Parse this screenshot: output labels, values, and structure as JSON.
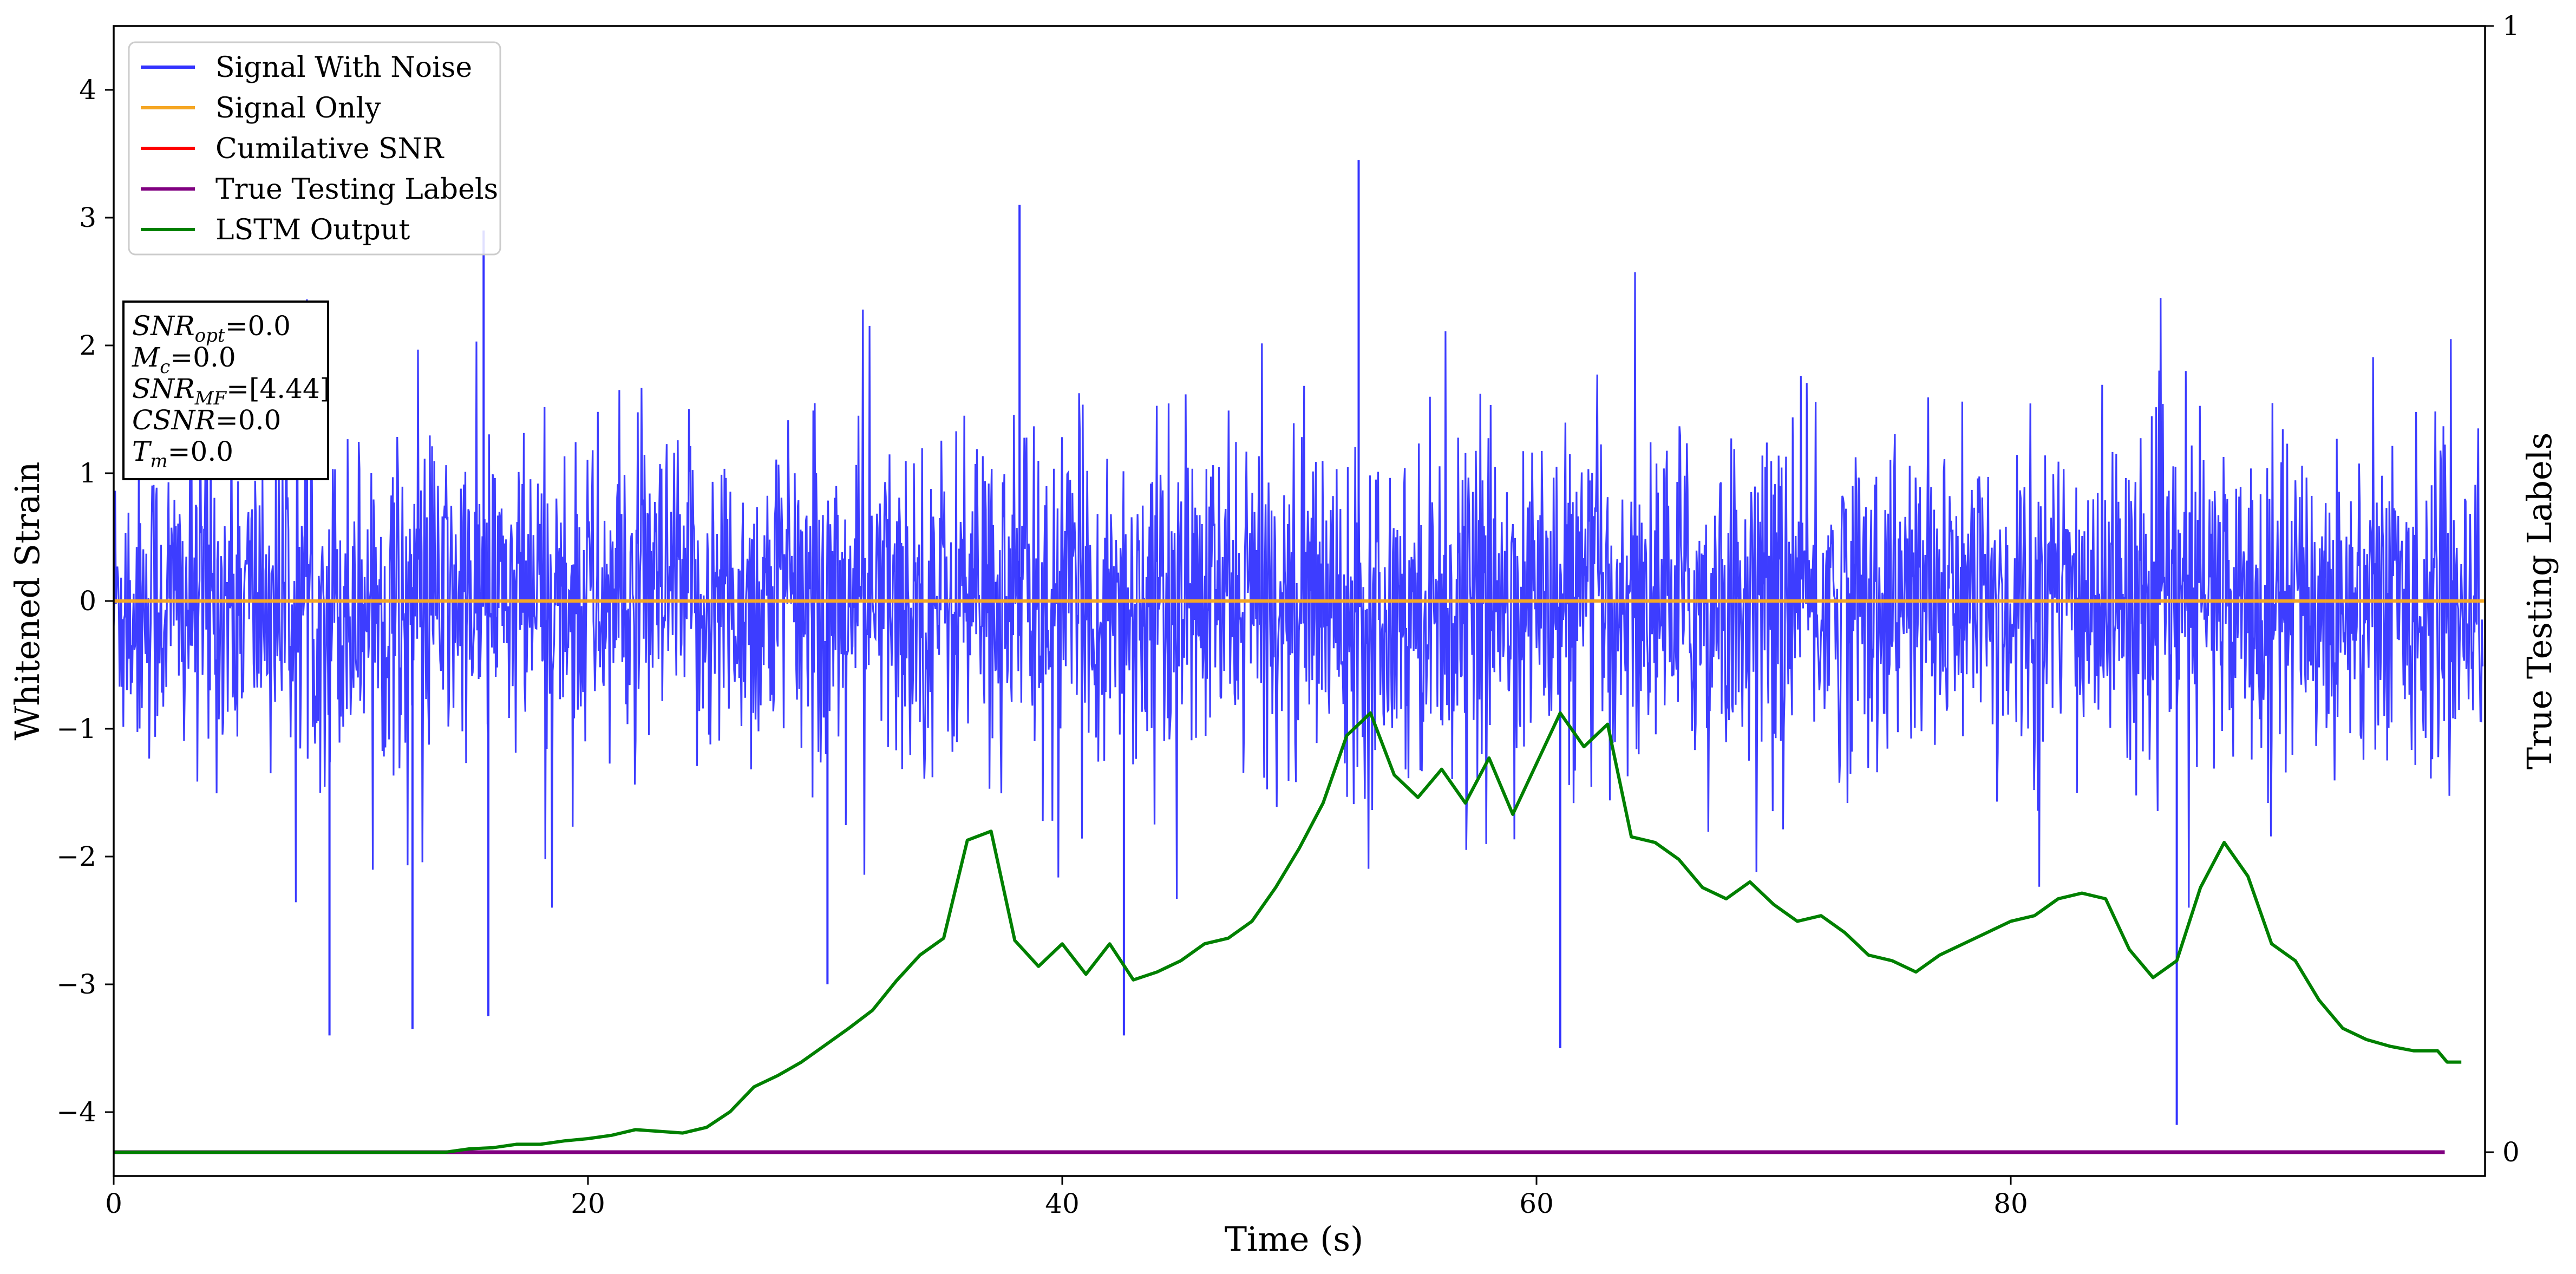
{
  "chart_data": {
    "type": "line",
    "xlabel": "Time (s)",
    "ylabel": "Whitened Strain",
    "ylabel_right": "True Testing Labels",
    "xlim": [
      0,
      100
    ],
    "ylim": [
      -4.5,
      4.5
    ],
    "ylim_right": [
      0,
      1
    ],
    "xticks": [
      0,
      20,
      40,
      60,
      80
    ],
    "yticks": [
      -4,
      -3,
      -2,
      -1,
      0,
      1,
      2,
      3,
      4
    ],
    "yticks_right": [
      0,
      1
    ],
    "grid": false,
    "legend_position": "upper-left",
    "legend": [
      {
        "label": "Signal With Noise",
        "color": "#3333ff"
      },
      {
        "label": "Signal Only",
        "color": "#f5a623"
      },
      {
        "label": "Cumilative SNR",
        "color": "#ff0000"
      },
      {
        "label": "True Testing Labels",
        "color": "#800080"
      },
      {
        "label": "LSTM Output",
        "color": "#008000"
      }
    ],
    "info_box": [
      {
        "base": "SNR",
        "sub": "opt",
        "value": "=0.0"
      },
      {
        "base": "M",
        "sub": "c",
        "value": "=0.0"
      },
      {
        "base": "SNR",
        "sub": "MF",
        "value": "=[4.44]"
      },
      {
        "base": "CSNR",
        "sub": "",
        "value": "=0.0"
      },
      {
        "base": "T",
        "sub": "m",
        "value": "=0.0"
      }
    ],
    "series": [
      {
        "name": "Signal With Noise",
        "axis": "left",
        "color": "#3333ff",
        "summary": "dense noise over 0-100 s, mostly between -1.6 and 1.6",
        "peak_min": -4.1,
        "peak_max": 3.45,
        "notable_spikes": [
          {
            "x": 9.1,
            "y": -3.4
          },
          {
            "x": 12.6,
            "y": -3.35
          },
          {
            "x": 15.6,
            "y": 2.9
          },
          {
            "x": 15.8,
            "y": -3.25
          },
          {
            "x": 30.1,
            "y": -3.0
          },
          {
            "x": 37.2,
            "y": 0.15
          },
          {
            "x": 38.2,
            "y": 3.1
          },
          {
            "x": 42.6,
            "y": -3.4
          },
          {
            "x": 52.5,
            "y": 3.45
          },
          {
            "x": 61.0,
            "y": -3.5
          },
          {
            "x": 87.0,
            "y": -4.1
          }
        ]
      },
      {
        "name": "Signal Only",
        "axis": "left",
        "color": "#f5a623",
        "x": [
          0,
          100
        ],
        "y": [
          0,
          0
        ]
      },
      {
        "name": "True Testing Labels",
        "axis": "right",
        "color": "#800080",
        "x": [
          0,
          98.3
        ],
        "y": [
          0,
          0
        ]
      },
      {
        "name": "LSTM Output",
        "axis": "right",
        "color": "#008000",
        "x": [
          0,
          14,
          15,
          16,
          17,
          18,
          19,
          20,
          21,
          22,
          24,
          25,
          26,
          27,
          28,
          29,
          30,
          31,
          32,
          33,
          34,
          35,
          36,
          37,
          38,
          39,
          40,
          41,
          42,
          43,
          44,
          45,
          46,
          47,
          48,
          49,
          50,
          51,
          52,
          53,
          54,
          55,
          56,
          57,
          58,
          59,
          60,
          61,
          62,
          63,
          64,
          65,
          66,
          67,
          68,
          69,
          70,
          71,
          72,
          73,
          74,
          75,
          76,
          77,
          78,
          79,
          80,
          81,
          82,
          83,
          84,
          85,
          86,
          87,
          88,
          89,
          90,
          91,
          92,
          93,
          94,
          95,
          96,
          97,
          98,
          98.4,
          99
        ],
        "y": [
          0.0,
          0.0,
          0.003,
          0.004,
          0.007,
          0.007,
          0.01,
          0.012,
          0.015,
          0.02,
          0.017,
          0.022,
          0.036,
          0.058,
          0.068,
          0.08,
          0.095,
          0.11,
          0.126,
          0.152,
          0.175,
          0.19,
          0.277,
          0.285,
          0.188,
          0.165,
          0.185,
          0.158,
          0.185,
          0.153,
          0.16,
          0.17,
          0.185,
          0.19,
          0.205,
          0.235,
          0.27,
          0.31,
          0.37,
          0.39,
          0.335,
          0.315,
          0.34,
          0.31,
          0.35,
          0.3,
          0.345,
          0.39,
          0.36,
          0.38,
          0.28,
          0.275,
          0.26,
          0.235,
          0.225,
          0.24,
          0.22,
          0.205,
          0.21,
          0.195,
          0.175,
          0.17,
          0.16,
          0.175,
          0.185,
          0.195,
          0.205,
          0.21,
          0.225,
          0.23,
          0.225,
          0.18,
          0.155,
          0.17,
          0.235,
          0.275,
          0.245,
          0.185,
          0.17,
          0.135,
          0.11,
          0.1,
          0.094,
          0.09,
          0.09,
          0.08,
          0.08
        ]
      }
    ]
  }
}
